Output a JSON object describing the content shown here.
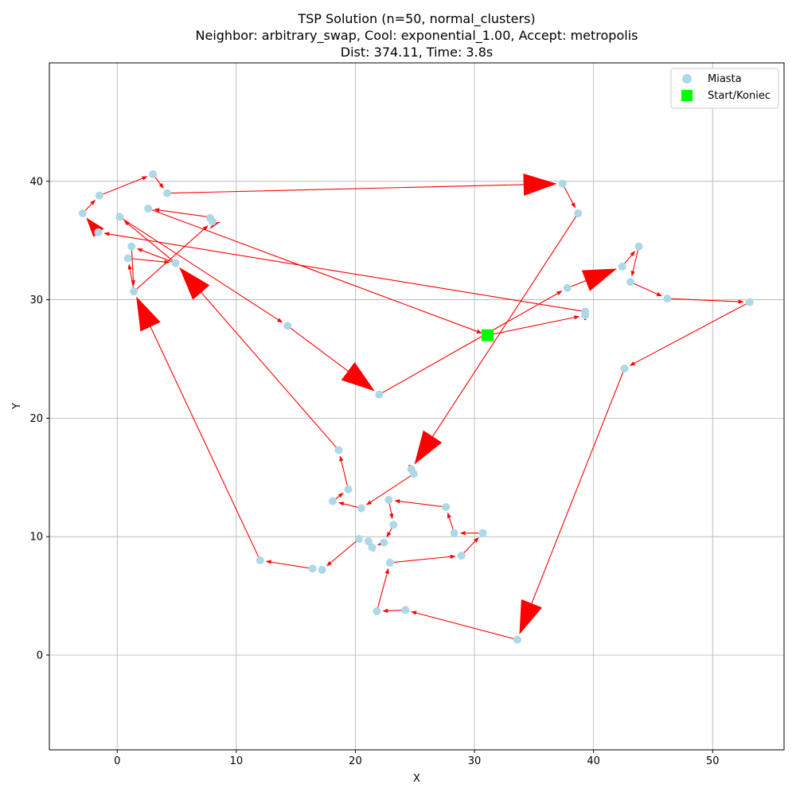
{
  "chart_data": {
    "type": "scatter",
    "title_lines": [
      "TSP Solution (n=50, normal_clusters)",
      "Neighbor: arbitrary_swap, Cool: exponential_1.00, Accept: metropolis",
      "Dist: 374.11, Time: 3.8s"
    ],
    "xlabel": "X",
    "ylabel": "Y",
    "xlim": [
      -5.7,
      56
    ],
    "ylim": [
      -8,
      50
    ],
    "xticks": [
      0,
      10,
      20,
      30,
      40,
      50
    ],
    "yticks": [
      0,
      10,
      20,
      30,
      40
    ],
    "grid": true,
    "legend": {
      "placement": "top-right",
      "entries": [
        {
          "label": "Miasta",
          "marker": "circle",
          "color": "#add8e6"
        },
        {
          "label": "Start/Koniec",
          "marker": "square",
          "color": "#00ff00"
        }
      ]
    },
    "colors": {
      "cities": "#add8e6",
      "route": "#ff0000",
      "start": "#00ff00",
      "grid": "#b0b0b0"
    },
    "start": [
      31.1,
      27.0
    ],
    "route": [
      [
        31.1,
        27.0
      ],
      [
        39.3,
        28.7
      ],
      [
        39.3,
        29.0
      ],
      [
        -1.6,
        35.7
      ],
      [
        -2.9,
        37.3
      ],
      [
        -1.5,
        38.8
      ],
      [
        3.0,
        40.6
      ],
      [
        4.2,
        39.0
      ],
      [
        37.4,
        39.8
      ],
      [
        38.7,
        37.3
      ],
      [
        24.7,
        15.7
      ],
      [
        24.9,
        15.3
      ],
      [
        20.5,
        12.4
      ],
      [
        18.1,
        13.0
      ],
      [
        19.4,
        14.0
      ],
      [
        18.6,
        17.3
      ],
      [
        4.9,
        33.1
      ],
      [
        1.2,
        34.5
      ],
      [
        1.4,
        30.7
      ],
      [
        0.9,
        33.5
      ],
      [
        4.9,
        33.1
      ],
      [
        0.2,
        37.0
      ],
      [
        14.3,
        27.8
      ],
      [
        22.0,
        22.0
      ],
      [
        37.8,
        31.0
      ],
      [
        42.4,
        32.8
      ],
      [
        43.8,
        34.5
      ],
      [
        43.1,
        31.5
      ],
      [
        46.2,
        30.1
      ],
      [
        53.1,
        29.8
      ],
      [
        42.6,
        24.2
      ],
      [
        33.6,
        1.3
      ],
      [
        24.2,
        3.8
      ],
      [
        21.8,
        3.7
      ],
      [
        22.9,
        7.8
      ],
      [
        28.9,
        8.4
      ],
      [
        30.7,
        10.3
      ],
      [
        28.3,
        10.3
      ],
      [
        27.6,
        12.5
      ],
      [
        22.8,
        13.1
      ],
      [
        23.2,
        11.0
      ],
      [
        22.4,
        9.5
      ],
      [
        21.4,
        9.1
      ],
      [
        21.1,
        9.6
      ],
      [
        20.3,
        9.8
      ],
      [
        17.2,
        7.2
      ],
      [
        16.4,
        7.3
      ],
      [
        12.0,
        8.0
      ],
      [
        1.4,
        30.7
      ],
      [
        1.4,
        30.7
      ],
      [
        8.0,
        36.6
      ],
      [
        7.8,
        36.9
      ],
      [
        7.6,
        37.0
      ],
      [
        2.6,
        37.7
      ],
      [
        31.1,
        27.0
      ]
    ],
    "big_arrow_segments": [
      3,
      7,
      9,
      15,
      22,
      47,
      50,
      54,
      30,
      24
    ],
    "cities": [
      [
        31.1,
        27.0
      ],
      [
        39.3,
        28.7
      ],
      [
        39.3,
        29.0
      ],
      [
        -1.6,
        35.7
      ],
      [
        -2.9,
        37.3
      ],
      [
        -1.5,
        38.8
      ],
      [
        3.0,
        40.6
      ],
      [
        4.2,
        39.0
      ],
      [
        37.4,
        39.8
      ],
      [
        38.7,
        37.3
      ],
      [
        24.7,
        15.7
      ],
      [
        24.9,
        15.3
      ],
      [
        20.5,
        12.4
      ],
      [
        18.1,
        13.0
      ],
      [
        19.4,
        14.0
      ],
      [
        18.6,
        17.3
      ],
      [
        4.9,
        33.1
      ],
      [
        1.2,
        34.5
      ],
      [
        1.4,
        30.7
      ],
      [
        0.9,
        33.5
      ],
      [
        0.2,
        37.0
      ],
      [
        14.3,
        27.8
      ],
      [
        22.0,
        22.0
      ],
      [
        37.8,
        31.0
      ],
      [
        42.4,
        32.8
      ],
      [
        43.8,
        34.5
      ],
      [
        43.1,
        31.5
      ],
      [
        46.2,
        30.1
      ],
      [
        53.1,
        29.8
      ],
      [
        42.6,
        24.2
      ],
      [
        33.6,
        1.3
      ],
      [
        24.2,
        3.8
      ],
      [
        21.8,
        3.7
      ],
      [
        22.9,
        7.8
      ],
      [
        28.9,
        8.4
      ],
      [
        30.7,
        10.3
      ],
      [
        28.3,
        10.3
      ],
      [
        27.6,
        12.5
      ],
      [
        22.8,
        13.1
      ],
      [
        23.2,
        11.0
      ],
      [
        22.4,
        9.5
      ],
      [
        21.4,
        9.1
      ],
      [
        21.1,
        9.6
      ],
      [
        20.3,
        9.8
      ],
      [
        17.2,
        7.2
      ],
      [
        16.4,
        7.3
      ],
      [
        12.0,
        8.0
      ],
      [
        8.0,
        36.6
      ],
      [
        7.8,
        36.9
      ],
      [
        2.6,
        37.7
      ]
    ]
  }
}
